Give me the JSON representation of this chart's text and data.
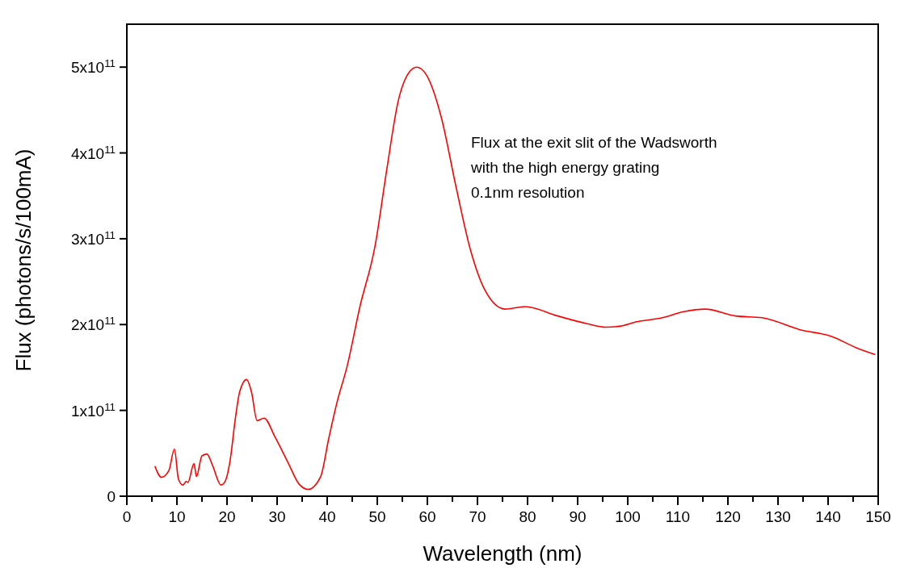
{
  "chart_data": {
    "type": "line",
    "xlabel": "Wavelength (nm)",
    "ylabel": "Flux (photons/s/100mA)",
    "annotations": [
      "Flux at the exit slit of the Wadsworth\nwith the high energy grating\n0.1nm resolution"
    ],
    "xlim": [
      0,
      150
    ],
    "ylim": [
      0,
      550000000000.0
    ],
    "xticks": [
      0,
      {
        "value": 5,
        "label": null
      },
      10,
      {
        "value": 15,
        "label": null
      },
      20,
      {
        "value": 25,
        "label": null
      },
      30,
      {
        "value": 35,
        "label": null
      },
      40,
      {
        "value": 45,
        "label": null
      },
      50,
      {
        "value": 55,
        "label": null
      },
      60,
      {
        "value": 65,
        "label": null
      },
      70,
      {
        "value": 75,
        "label": null
      },
      80,
      {
        "value": 85,
        "label": null
      },
      90,
      {
        "value": 95,
        "label": null
      },
      100,
      {
        "value": 105,
        "label": null
      },
      110,
      {
        "value": 115,
        "label": null
      },
      120,
      {
        "value": 125,
        "label": null
      },
      130,
      {
        "value": 135,
        "label": null
      },
      140,
      {
        "value": 145,
        "label": null
      },
      150
    ],
    "yticks": [
      0,
      {
        "value": 100000000000.0,
        "label": "1x10$^{11}$"
      },
      {
        "value": 200000000000.0,
        "label": "2x10$^{11}$"
      },
      {
        "value": 300000000000.0,
        "label": "3x10$^{11}$"
      },
      {
        "value": 400000000000.0,
        "label": "4x10$^{11}$"
      },
      {
        "value": 500000000000.0,
        "label": "5x10$^{11}$"
      }
    ],
    "marker": "none",
    "line_style": "solid",
    "series": [
      {
        "color": "#ff0000",
        "x": [
          5.6,
          6.9,
          8.4,
          9.5,
          10.3,
          11.2,
          11.8,
          12.2,
          13.4,
          13.9,
          15.0,
          16.0,
          17.1,
          18.8,
          19.6,
          20.6,
          21.7,
          22.5,
          23.9,
          24.9,
          26.0,
          27.4,
          29.5,
          32.2,
          34.4,
          36.2,
          38.7,
          40.3,
          41.9,
          44.0,
          46.5,
          49.6,
          51.9,
          54.2,
          56.5,
          57.9,
          59.9,
          62.8,
          65.7,
          68.6,
          71.5,
          75.5,
          79.5,
          86.0,
          91.9,
          95.6,
          98.3,
          101.6,
          106.9,
          111.2,
          115.5,
          121.5,
          126.8,
          134.4,
          140.8,
          145.6,
          149.4
        ],
        "values": [
          35000000000.0,
          22000000000.0,
          30000000000.0,
          55000000000.0,
          20000000000.0,
          13000000000.0,
          17000000000.0,
          16000000000.0,
          38000000000.0,
          23000000000.0,
          47000000000.0,
          49000000000.0,
          36000000000.0,
          13000000000.0,
          17000000000.0,
          41000000000.0,
          92000000000.0,
          121000000000.0,
          136000000000.0,
          121000000000.0,
          88000000000.0,
          91000000000.0,
          70000000000.0,
          39000000000.0,
          14000000000.0,
          8000000000.0,
          23000000000.0,
          67000000000.0,
          108000000000.0,
          152000000000.0,
          220000000000.0,
          293000000000.0,
          381000000000.0,
          461000000000.0,
          495000000000.0,
          500000000000.0,
          490000000000.0,
          441000000000.0,
          361000000000.0,
          287000000000.0,
          240000000000.0,
          218000000000.0,
          221000000000.0,
          210000000000.0,
          201000000000.0,
          197000000000.0,
          198000000000.0,
          203000000000.0,
          208000000000.0,
          215000000000.0,
          218000000000.0,
          210000000000.0,
          208000000000.0,
          194000000000.0,
          186000000000.0,
          173000000000.0,
          165000000000.0
        ]
      }
    ]
  }
}
